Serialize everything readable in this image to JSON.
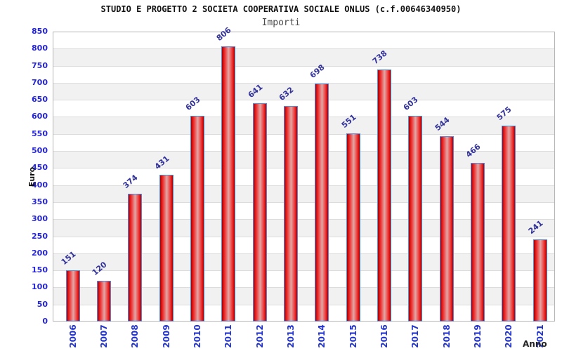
{
  "chart_data": {
    "type": "bar",
    "title": "STUDIO E PROGETTO 2 SOCIETA COOPERATIVA SOCIALE ONLUS (c.f.00646340950)",
    "subtitle": "Importi",
    "xlabel": "Anno",
    "ylabel": "Euro",
    "categories": [
      "2006",
      "2007",
      "2008",
      "2009",
      "2010",
      "2011",
      "2012",
      "2013",
      "2014",
      "2015",
      "2016",
      "2017",
      "2018",
      "2019",
      "2020",
      "2021"
    ],
    "values": [
      151,
      120,
      374,
      431,
      603,
      806,
      641,
      632,
      698,
      551,
      738,
      603,
      544,
      466,
      575,
      241
    ],
    "ylim": [
      0,
      850
    ],
    "ytick_step": 50,
    "legend_position": "none",
    "grid": "horizontal-bands-alternating",
    "colors": {
      "bar_border": "#4d8fdb",
      "bar_dark": "#a50000",
      "bar_mid": "#e01414",
      "bar_light": "#e0a8a8",
      "value_label": "#32329b",
      "y_tick_label": "#2424d9",
      "x_tick_label": "#2233cc",
      "band_gray": "#f1f1f1",
      "band_white": "#ffffff",
      "gridline": "#dcdcdc",
      "plot_border": "#b4b4b4",
      "title_color": "#111111",
      "subtitle_color": "#4a4a4a"
    }
  }
}
